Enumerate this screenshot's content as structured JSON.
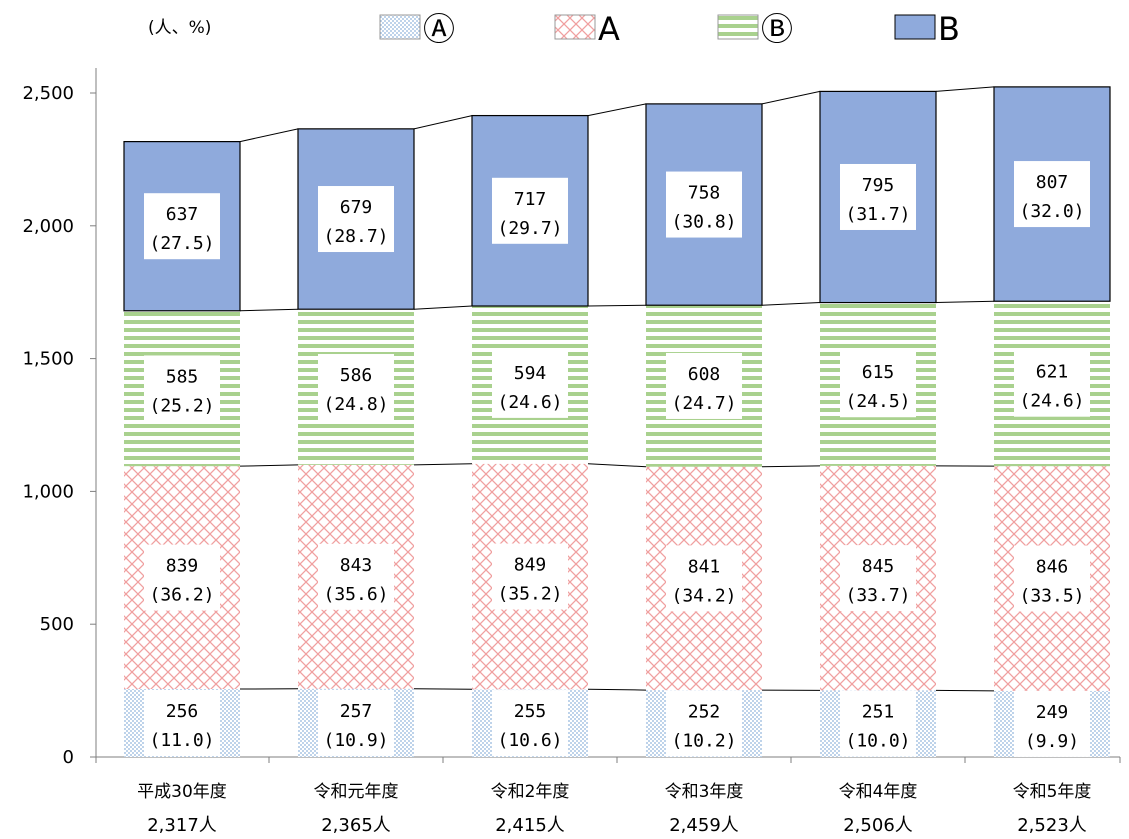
{
  "chart_data": {
    "type": "bar",
    "stacked": true,
    "unit_label": "(人、%)",
    "categories": [
      "平成30年度",
      "令和元年度",
      "令和2年度",
      "令和3年度",
      "令和4年度",
      "令和5年度"
    ],
    "totals": [
      "2,317人",
      "2,365人",
      "2,415人",
      "2,459人",
      "2,506人",
      "2,523人"
    ],
    "ylim": [
      0,
      2500
    ],
    "yticks": [
      0,
      500,
      1000,
      1500,
      2000,
      2500
    ],
    "ytick_labels": [
      "0",
      "500",
      "1,000",
      "1,500",
      "2,000",
      "2,500"
    ],
    "legend_position": "top",
    "series": [
      {
        "name": "Ⓐ",
        "color": "#9dc3e6",
        "pattern": "dots",
        "values": [
          256,
          257,
          255,
          252,
          251,
          249
        ],
        "percent_labels": [
          "(11.0)",
          "(10.9)",
          "(10.6)",
          "(10.2)",
          "(10.0)",
          "(9.9)"
        ]
      },
      {
        "name": "A",
        "color": "#f4a6a6",
        "pattern": "crosshatch",
        "values": [
          839,
          843,
          849,
          841,
          845,
          846
        ],
        "percent_labels": [
          "(36.2)",
          "(35.6)",
          "(35.2)",
          "(34.2)",
          "(33.7)",
          "(33.5)"
        ]
      },
      {
        "name": "Ⓑ",
        "color": "#a9d18e",
        "pattern": "horizontal-stripes",
        "values": [
          585,
          586,
          594,
          608,
          615,
          621
        ],
        "percent_labels": [
          "(25.2)",
          "(24.8)",
          "(24.6)",
          "(24.7)",
          "(24.5)",
          "(24.6)"
        ]
      },
      {
        "name": "B",
        "color": "#8faadc",
        "pattern": "solid",
        "values": [
          637,
          679,
          717,
          758,
          795,
          807
        ],
        "percent_labels": [
          "(27.5)",
          "(28.7)",
          "(29.7)",
          "(30.8)",
          "(31.7)",
          "(32.0)"
        ]
      }
    ]
  }
}
